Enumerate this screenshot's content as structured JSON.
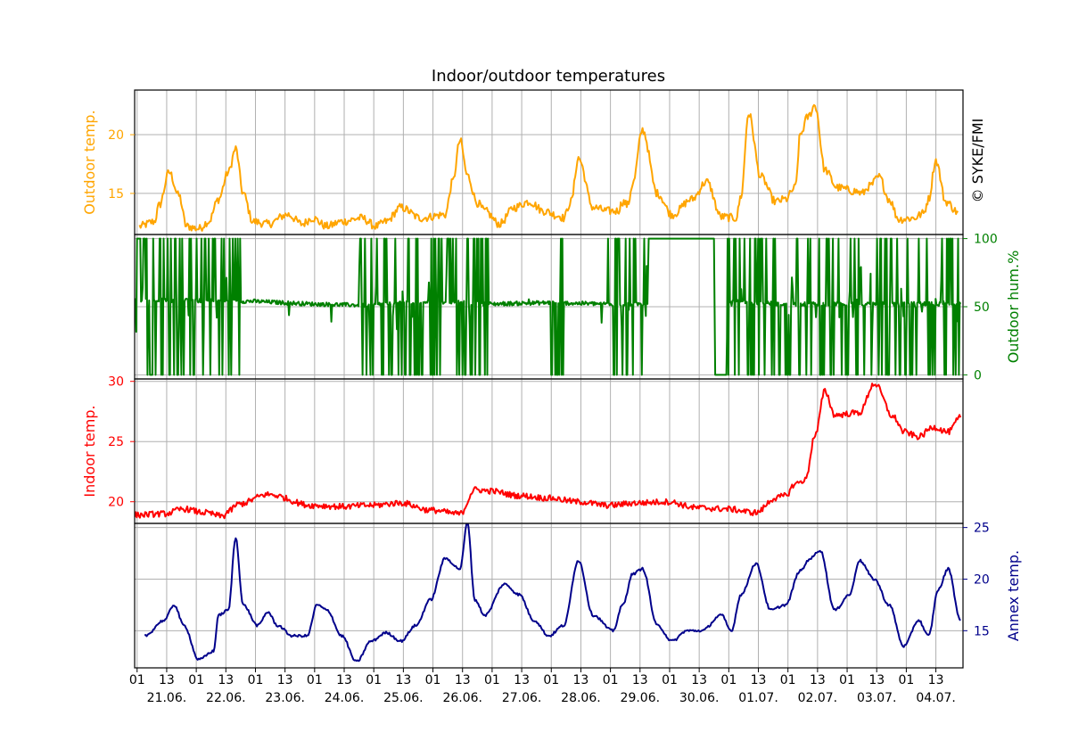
{
  "chart_data": {
    "type": "line",
    "title": "Indoor/outdoor temperatures",
    "watermark": "© SYKE/FMI",
    "x_start": "2023-06-21T00:00",
    "x_end": "2023-07-05T00:00",
    "x_tick_labels": [
      "01",
      "13",
      "01",
      "13",
      "01",
      "13",
      "01",
      "13",
      "01",
      "13",
      "01",
      "13",
      "01",
      "13",
      "01",
      "13",
      "01",
      "13",
      "01",
      "13",
      "01",
      "13",
      "01",
      "13",
      "01",
      "13",
      "01",
      "13",
      "01"
    ],
    "date_labels": [
      "21.06.",
      "22.06.",
      "23.06.",
      "24.06.",
      "25.06.",
      "26.06.",
      "27.06.",
      "28.06.",
      "29.06.",
      "30.06.",
      "01.07.",
      "02.07.",
      "03.07.",
      "04.07."
    ],
    "grid": true,
    "panels": [
      {
        "ylabel": "Outdoor temp.",
        "color": "#FFA500",
        "axis_side": "left",
        "ylim": [
          11.5,
          23.8
        ],
        "yticks": [
          15,
          20
        ],
        "series": {
          "x": [
            "2023-06-21T02:00",
            "2023-06-21T08:00",
            "2023-06-21T10:00",
            "2023-06-21T14:00",
            "2023-06-21T18:00",
            "2023-06-21T21:00",
            "2023-06-22T02:00",
            "2023-06-22T06:00",
            "2023-06-22T10:00",
            "2023-06-22T14:00",
            "2023-06-22T17:00",
            "2023-06-22T20:00",
            "2023-06-23T00:00",
            "2023-06-23T06:00",
            "2023-06-23T14:00",
            "2023-06-23T20:00",
            "2023-06-24T00:00",
            "2023-06-24T06:00",
            "2023-06-24T12:00",
            "2023-06-24T20:00",
            "2023-06-25T02:00",
            "2023-06-25T06:00",
            "2023-06-25T12:00",
            "2023-06-25T20:00",
            "2023-06-26T06:00",
            "2023-06-26T09:00",
            "2023-06-26T12:00",
            "2023-06-26T15:00",
            "2023-06-26T19:00",
            "2023-06-26T22:00",
            "2023-06-27T04:00",
            "2023-06-27T10:00",
            "2023-06-27T16:00",
            "2023-06-27T22:00",
            "2023-06-28T04:00",
            "2023-06-28T06:00",
            "2023-06-28T09:00",
            "2023-06-28T12:00",
            "2023-06-28T18:00",
            "2023-06-29T00:00",
            "2023-06-29T04:00",
            "2023-06-29T06:00",
            "2023-06-29T08:00",
            "2023-06-29T10:00",
            "2023-06-29T14:00",
            "2023-06-29T20:00",
            "2023-06-30T02:00",
            "2023-06-30T10:00",
            "2023-06-30T16:00",
            "2023-06-30T22:00",
            "2023-07-01T04:00",
            "2023-07-01T06:00",
            "2023-07-01T09:00",
            "2023-07-01T14:00",
            "2023-07-01T20:00",
            "2023-07-02T00:00",
            "2023-07-02T04:00",
            "2023-07-02T06:00",
            "2023-07-02T09:00",
            "2023-07-02T12:00",
            "2023-07-02T16:00",
            "2023-07-02T21:00",
            "2023-07-03T04:00",
            "2023-07-03T07:00",
            "2023-07-03T10:00",
            "2023-07-03T14:00",
            "2023-07-03T18:00",
            "2023-07-03T22:00",
            "2023-07-04T04:00",
            "2023-07-04T08:00",
            "2023-07-04T10:00",
            "2023-07-04T13:00",
            "2023-07-04T17:00",
            "2023-07-04T22:00"
          ],
          "y": [
            12.2,
            12.6,
            14.0,
            16.8,
            14.8,
            12.2,
            12.0,
            12.6,
            14.5,
            16.8,
            18.8,
            15.0,
            12.6,
            12.4,
            13.2,
            12.4,
            12.9,
            12.2,
            12.6,
            12.9,
            12.2,
            12.6,
            13.8,
            12.9,
            13.2,
            16.0,
            19.5,
            16.5,
            14.2,
            13.5,
            12.4,
            13.8,
            14.3,
            13.5,
            13.1,
            12.9,
            14.3,
            18.0,
            13.8,
            13.5,
            13.5,
            14.3,
            14.0,
            15.8,
            20.4,
            15.0,
            13.2,
            14.5,
            16.0,
            13.0,
            12.9,
            14.8,
            21.8,
            16.4,
            14.3,
            14.5,
            15.5,
            20.0,
            21.5,
            22.5,
            17.0,
            15.5,
            15.2,
            15.0,
            15.6,
            16.4,
            14.5,
            12.8,
            12.9,
            13.3,
            14.5,
            17.8,
            14.3,
            13.4
          ]
        }
      },
      {
        "ylabel": "Outdoor hum.%",
        "color": "#008000",
        "axis_side": "right",
        "ylim": [
          -3,
          103
        ],
        "yticks": [
          0,
          50,
          100
        ],
        "flicker_periods": [
          [
            "2023-06-21T00:00",
            "2023-06-22T20:00"
          ],
          [
            "2023-06-24T19:00",
            "2023-06-25T21:00"
          ],
          [
            "2023-06-26T00:00",
            "2023-06-27T00:00"
          ],
          [
            "2023-06-28T00:00",
            "2023-06-28T06:00"
          ],
          [
            "2023-06-29T00:00",
            "2023-06-29T16:00"
          ],
          [
            "2023-07-01T00:00",
            "2023-07-01T22:00"
          ],
          [
            "2023-07-02T00:00",
            "2023-07-04T23:00"
          ]
        ],
        "series": {
          "x": [
            "2023-06-21T00:00",
            "2023-06-23T00:00",
            "2023-06-24T00:00",
            "2023-06-25T00:00",
            "2023-06-26T00:00",
            "2023-06-27T00:00",
            "2023-06-28T00:00",
            "2023-06-29T00:00",
            "2023-06-29T16:00",
            "2023-06-29T16:30",
            "2023-06-30T19:00",
            "2023-06-30T19:30",
            "2023-07-01T00:00",
            "2023-07-01T00:30",
            "2023-07-02T00:00",
            "2023-07-04T23:00"
          ],
          "y": [
            55,
            54,
            52,
            51,
            54,
            52,
            53,
            52,
            52,
            100,
            100,
            0,
            0,
            54,
            52,
            52
          ]
        }
      },
      {
        "ylabel": "Indoor temp.",
        "color": "#FF0000",
        "axis_side": "left",
        "ylim": [
          18.2,
          30.2
        ],
        "yticks": [
          20,
          25,
          30
        ],
        "series": {
          "x": [
            "2023-06-21T00:00",
            "2023-06-21T12:00",
            "2023-06-21T20:00",
            "2023-06-22T04:00",
            "2023-06-22T12:00",
            "2023-06-22T14:00",
            "2023-06-22T18:00",
            "2023-06-23T06:00",
            "2023-06-24T00:00",
            "2023-06-24T12:00",
            "2023-06-25T00:00",
            "2023-06-25T12:00",
            "2023-06-26T00:00",
            "2023-06-26T12:00",
            "2023-06-26T18:00",
            "2023-06-27T00:00",
            "2023-06-27T12:00",
            "2023-06-28T00:00",
            "2023-06-28T12:00",
            "2023-06-29T00:00",
            "2023-06-29T12:00",
            "2023-06-30T00:00",
            "2023-06-30T12:00",
            "2023-07-01T00:00",
            "2023-07-01T12:00",
            "2023-07-01T20:00",
            "2023-07-02T00:00",
            "2023-07-02T04:00",
            "2023-07-02T08:00",
            "2023-07-02T12:00",
            "2023-07-02T16:00",
            "2023-07-02T20:00",
            "2023-07-03T06:00",
            "2023-07-03T12:00",
            "2023-07-03T20:00",
            "2023-07-04T00:00",
            "2023-07-04T06:00",
            "2023-07-04T12:00",
            "2023-07-04T18:00",
            "2023-07-04T23:00"
          ],
          "y": [
            18.9,
            19.0,
            19.4,
            19.1,
            18.8,
            19.2,
            19.8,
            20.6,
            19.7,
            19.6,
            19.7,
            19.9,
            19.3,
            19.0,
            21.0,
            20.9,
            20.5,
            20.3,
            20.0,
            19.7,
            19.9,
            20.0,
            19.5,
            19.4,
            19.1,
            20.3,
            20.5,
            21.5,
            21.8,
            25.5,
            29.2,
            27.2,
            27.4,
            29.8,
            27.0,
            25.8,
            25.4,
            26.2,
            25.8,
            27.0
          ]
        }
      },
      {
        "ylabel": "Annex temp.",
        "color": "#00008B",
        "axis_side": "right",
        "ylim": [
          11.4,
          25.4
        ],
        "yticks": [
          15,
          20,
          25
        ],
        "series": {
          "x": [
            "2023-06-21T04:00",
            "2023-06-21T12:00",
            "2023-06-21T16:00",
            "2023-06-21T20:00",
            "2023-06-22T02:00",
            "2023-06-22T08:00",
            "2023-06-22T10:00",
            "2023-06-22T14:00",
            "2023-06-22T17:00",
            "2023-06-22T20:00",
            "2023-06-23T02:00",
            "2023-06-23T06:00",
            "2023-06-23T10:00",
            "2023-06-23T16:00",
            "2023-06-23T22:00",
            "2023-06-24T02:00",
            "2023-06-24T06:00",
            "2023-06-24T12:00",
            "2023-06-24T18:00",
            "2023-06-25T00:00",
            "2023-06-25T06:00",
            "2023-06-25T12:00",
            "2023-06-25T18:00",
            "2023-06-26T00:00",
            "2023-06-26T06:00",
            "2023-06-26T12:00",
            "2023-06-26T15:00",
            "2023-06-26T18:00",
            "2023-06-26T22:00",
            "2023-06-27T06:00",
            "2023-06-27T12:00",
            "2023-06-27T18:00",
            "2023-06-28T00:00",
            "2023-06-28T06:00",
            "2023-06-28T12:00",
            "2023-06-28T18:00",
            "2023-06-29T02:00",
            "2023-06-29T06:00",
            "2023-06-29T10:00",
            "2023-06-29T14:00",
            "2023-06-29T20:00",
            "2023-06-30T02:00",
            "2023-06-30T08:00",
            "2023-06-30T14:00",
            "2023-06-30T22:00",
            "2023-07-01T02:00",
            "2023-07-01T06:00",
            "2023-07-01T12:00",
            "2023-07-01T18:00",
            "2023-07-02T00:00",
            "2023-07-02T06:00",
            "2023-07-02T10:00",
            "2023-07-02T14:00",
            "2023-07-02T20:00",
            "2023-07-03T02:00",
            "2023-07-03T06:00",
            "2023-07-03T12:00",
            "2023-07-03T18:00",
            "2023-07-04T00:00",
            "2023-07-04T06:00",
            "2023-07-04T10:00",
            "2023-07-04T14:00",
            "2023-07-04T18:00",
            "2023-07-04T23:00"
          ],
          "y": [
            14.5,
            16.0,
            17.5,
            15.5,
            12.2,
            13.0,
            16.5,
            17.0,
            24.0,
            17.5,
            15.5,
            16.8,
            15.5,
            14.5,
            14.5,
            17.5,
            17.0,
            14.5,
            12.0,
            14.0,
            14.8,
            14.0,
            15.5,
            18.0,
            22.0,
            21.0,
            25.5,
            18.0,
            16.5,
            19.5,
            18.5,
            16.0,
            14.5,
            15.5,
            21.8,
            16.5,
            15.0,
            17.5,
            20.5,
            21.0,
            15.5,
            14.0,
            15.0,
            15.0,
            16.5,
            15.0,
            18.5,
            21.5,
            17.0,
            17.5,
            20.8,
            22.0,
            22.8,
            17.0,
            18.5,
            21.8,
            20.0,
            17.5,
            13.5,
            16.0,
            14.5,
            19.0,
            21.0,
            16.0
          ]
        }
      }
    ]
  }
}
